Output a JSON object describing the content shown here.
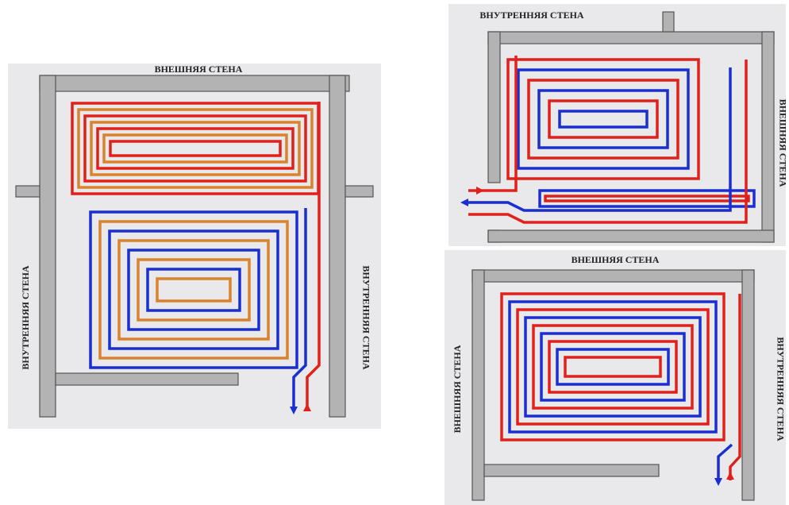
{
  "panels": [
    {
      "labels": {
        "top": "ВНЕШНЯЯ СТЕНА",
        "left": "ВНУТРЕННЯЯ СТЕНА",
        "right": "ВНУТРЕННЯЯ СТЕНА"
      }
    },
    {
      "labels": {
        "top": "ВНУТРЕННЯЯ СТЕНА",
        "right": "ВНЕШНЯЯ СТЕНА"
      }
    },
    {
      "labels": {
        "top": "ВНЕШНЯЯ СТЕНА",
        "left": "ВНЕШНЯЯ СТЕНА",
        "right": "ВНУТРЕННЯЯ СТЕНА"
      }
    }
  ]
}
